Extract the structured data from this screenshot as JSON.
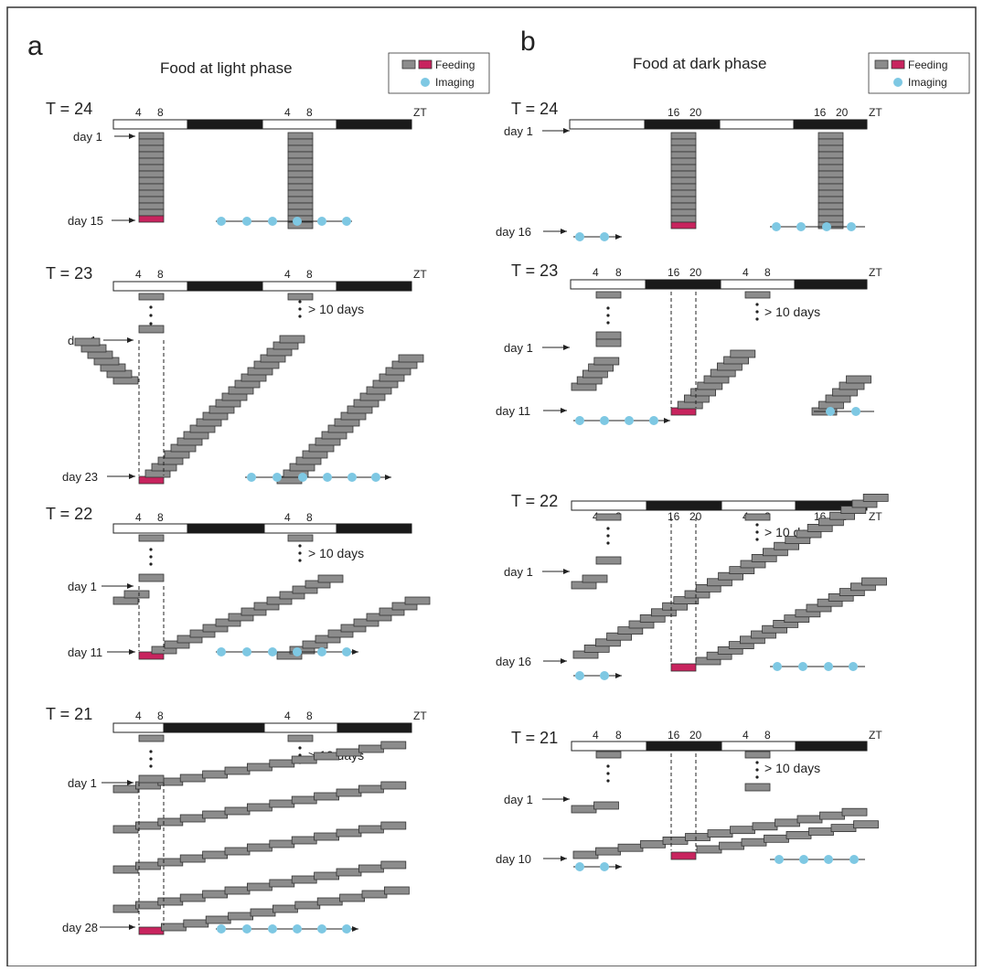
{
  "panels": [
    {
      "letter": "a",
      "title": "Food at light phase"
    },
    {
      "letter": "b",
      "title": "Food at dark phase"
    }
  ],
  "legend": {
    "feeding": "Feeding",
    "imaging": "Imaging"
  },
  "labels": {
    "zt": "ZT",
    "more_days": "> 10 days",
    "ticks_light": [
      "4",
      "8"
    ],
    "ticks_dark": [
      "16",
      "20"
    ]
  },
  "rows_a": [
    {
      "t_label": "T = 24",
      "first_day": "day 1",
      "last_day": "day 15"
    },
    {
      "t_label": "T = 23",
      "first_day": "day 1",
      "last_day": "day 23"
    },
    {
      "t_label": "T = 22",
      "first_day": "day 1",
      "last_day": "day 11"
    },
    {
      "t_label": "T = 21",
      "first_day": "day 1",
      "last_day": "day 28"
    }
  ],
  "rows_b": [
    {
      "t_label": "T = 24",
      "first_day": "day 1",
      "last_day": "day 16"
    },
    {
      "t_label": "T = 23",
      "first_day": "day 1",
      "last_day": "day 11"
    },
    {
      "t_label": "T = 22",
      "first_day": "day 1",
      "last_day": "day 16"
    },
    {
      "t_label": "T = 21",
      "first_day": "day 1",
      "last_day": "day 10"
    }
  ],
  "colors": {
    "feeding_gray": "#8c8c8c",
    "feeding_magenta": "#c8245e",
    "imaging": "#7ec8e3",
    "dark_phase": "#1a1a1a"
  }
}
